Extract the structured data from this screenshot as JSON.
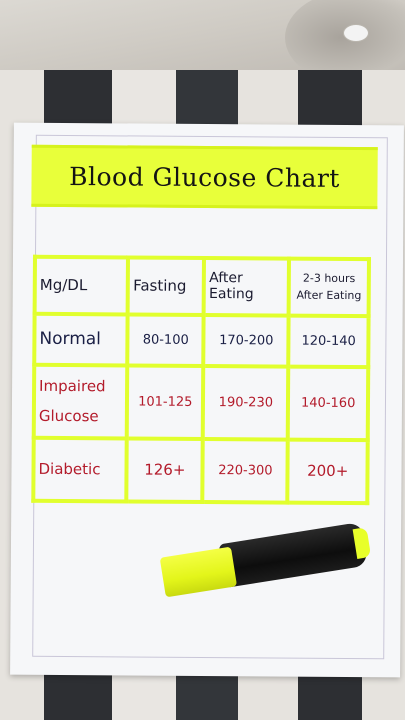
{
  "title": "Blood Glucose Chart",
  "table": {
    "header": [
      "Mg/DL",
      "Fasting",
      "After Eating",
      "2-3 hours After Eating"
    ],
    "rows": [
      {
        "label": "Normal",
        "fasting": "80-100",
        "after": "170-200",
        "later": "120-140"
      },
      {
        "label": "Impaired Glucose",
        "fasting": "101-125",
        "after": "190-230",
        "later": "140-160"
      },
      {
        "label": "Diabetic",
        "fasting": "126+",
        "after": "220-300",
        "later": "200+"
      }
    ]
  },
  "colors": {
    "highlight": "#e8ff3a",
    "red_ink": "#b31b2b",
    "navy_ink": "#1a1f45"
  }
}
